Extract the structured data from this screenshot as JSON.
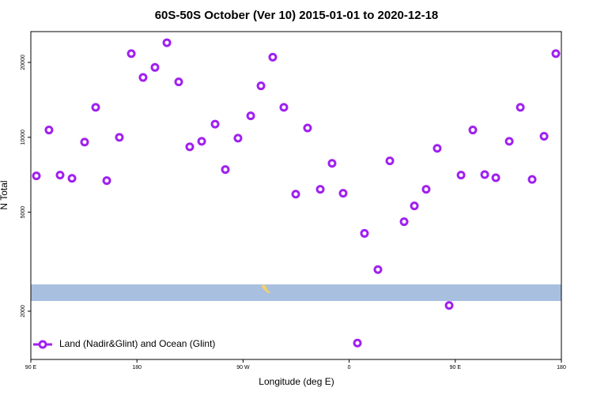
{
  "chart_data": {
    "type": "scatter",
    "title": "60S-50S October (Ver 10)   2015-01-01 to 2020-12-18",
    "xlabel": "Longitude (deg E)",
    "ylabel": "N Total",
    "log_y": true,
    "legend": "bottom-left",
    "xlim": [
      90,
      540
    ],
    "xticks": [
      {
        "value": 90,
        "label": "90 E"
      },
      180,
      {
        "value": 270,
        "label": "90 W"
      },
      {
        "value": 360,
        "label": "0"
      },
      {
        "value": 450,
        "label": "90 E"
      },
      {
        "value": 540,
        "label": "180"
      }
    ],
    "ylim": [
      1280,
      26600
    ],
    "yticks": [
      2000,
      5000,
      10000,
      20000
    ],
    "series": [
      {
        "name": "Land (Nadir&Glint) and Ocean (Glint)",
        "color": "#a020f0",
        "x": [
          94.7,
          105.4,
          114.8,
          124.9,
          135.6,
          145,
          154.4,
          165.1,
          175.2,
          185.2,
          195.3,
          205.4,
          215.4,
          224.8,
          234.9,
          246.3,
          255,
          265.7,
          276.5,
          285.2,
          295.2,
          304.6,
          314.7,
          324.7,
          335.5,
          345.5,
          354.9,
          367,
          373,
          384.4,
          394.5,
          406.6,
          415.3,
          425.3,
          434.7,
          444.8,
          454.9,
          464.9,
          475,
          484.4,
          495.8,
          505.2,
          515.2,
          525.3,
          535.3
        ],
        "values": [
          7000,
          10700,
          7050,
          6840,
          9570,
          13200,
          6700,
          10000,
          21700,
          17400,
          19100,
          24000,
          16700,
          9160,
          9640,
          11300,
          7420,
          9920,
          12200,
          16100,
          21000,
          13200,
          5910,
          10900,
          6180,
          7860,
          5960,
          1490,
          4110,
          2940,
          8040,
          4580,
          5300,
          6180,
          9030,
          2110,
          7050,
          10700,
          7080,
          6880,
          9640,
          13200,
          6770,
          10100,
          21700
        ]
      }
    ]
  }
}
